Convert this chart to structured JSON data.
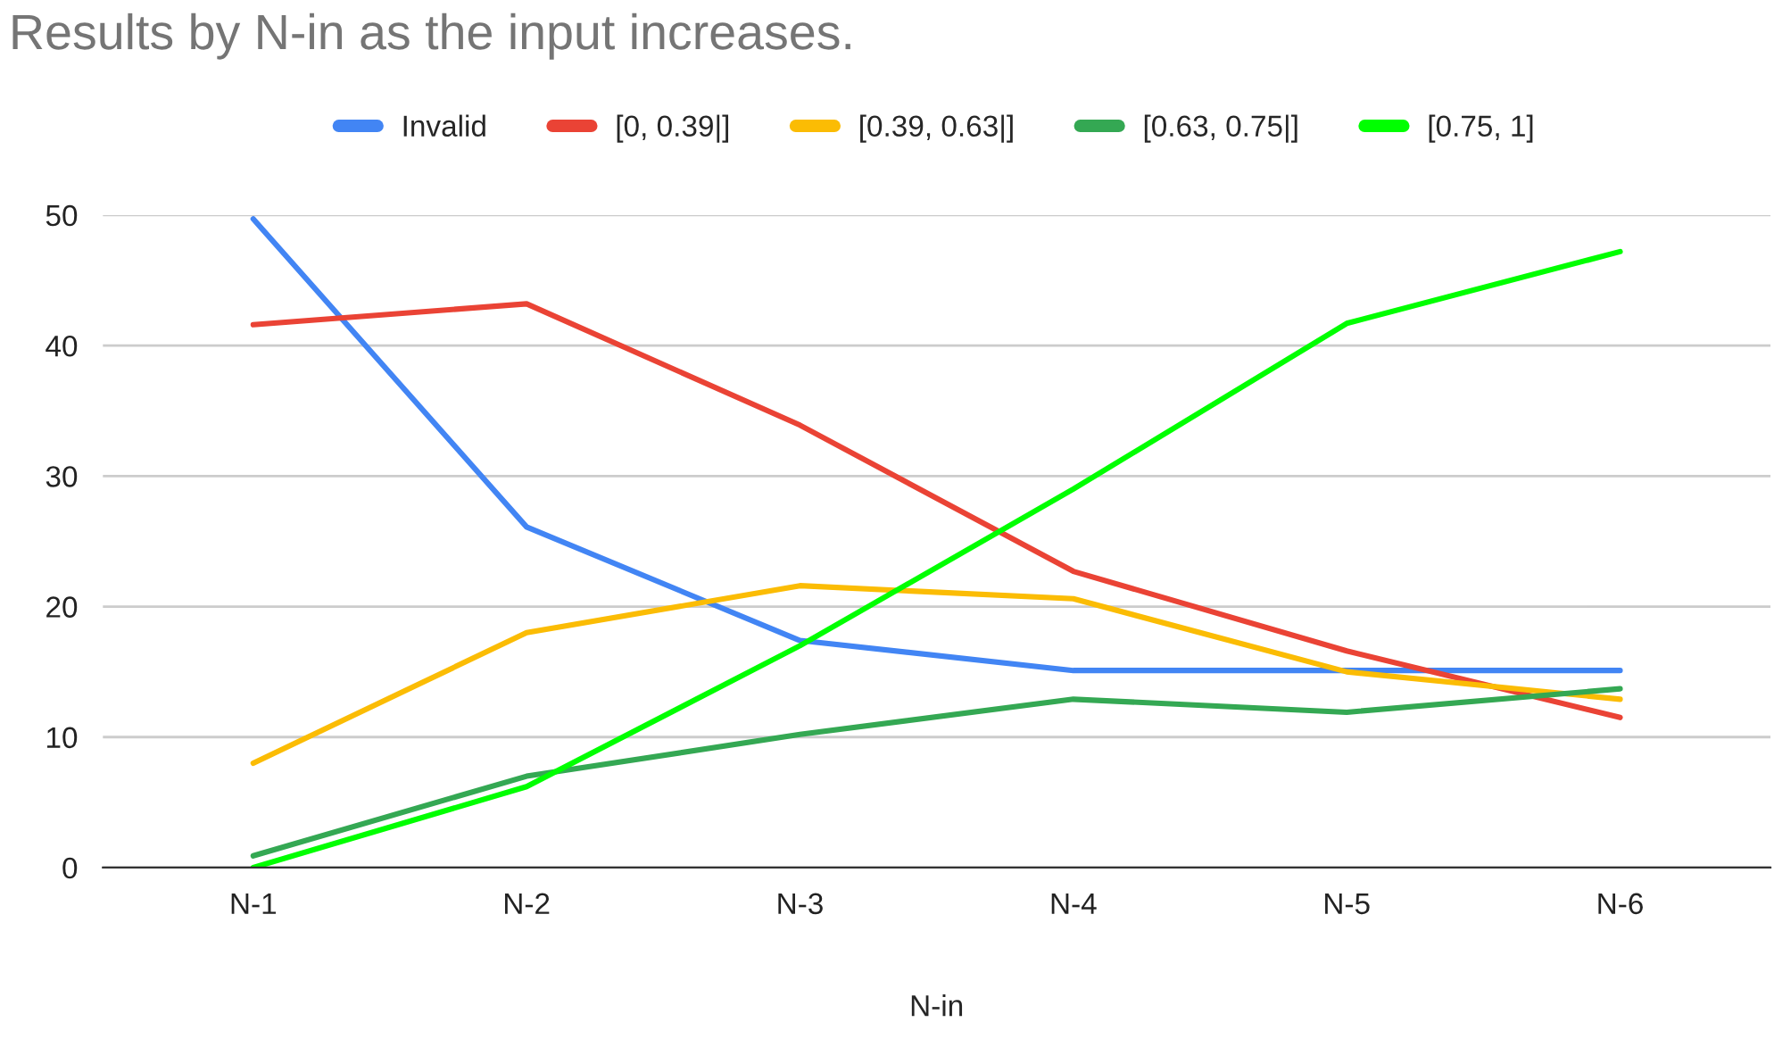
{
  "chart_data": {
    "type": "line",
    "title": "Results by N-in as the input increases.",
    "xlabel": "N-in",
    "categories": [
      "N-1",
      "N-2",
      "N-3",
      "N-4",
      "N-5",
      "N-6"
    ],
    "series": [
      {
        "name": "Invalid",
        "color": "#4285f4",
        "values": [
          49.7,
          26.1,
          17.4,
          15.1,
          15.1,
          15.1
        ]
      },
      {
        "name": "[0, 0.39|]",
        "color": "#ea4335",
        "values": [
          41.6,
          43.2,
          33.9,
          22.7,
          16.6,
          11.5
        ]
      },
      {
        "name": "[0.39, 0.63|]",
        "color": "#fbbc04",
        "values": [
          8.0,
          18.0,
          21.6,
          20.6,
          15.0,
          12.9
        ]
      },
      {
        "name": "[0.63, 0.75|]",
        "color": "#34a853",
        "values": [
          0.9,
          7.0,
          10.2,
          12.9,
          11.9,
          13.7
        ]
      },
      {
        "name": "[0.75, 1]",
        "color": "#00ff00",
        "values": [
          0,
          6.2,
          17.0,
          29.0,
          41.7,
          47.2
        ]
      }
    ],
    "ylim": [
      0,
      50
    ],
    "yticks": [
      0,
      10,
      20,
      30,
      40,
      50
    ],
    "grid": "y",
    "legend": "top",
    "marker": "none",
    "line_style": "solid"
  }
}
